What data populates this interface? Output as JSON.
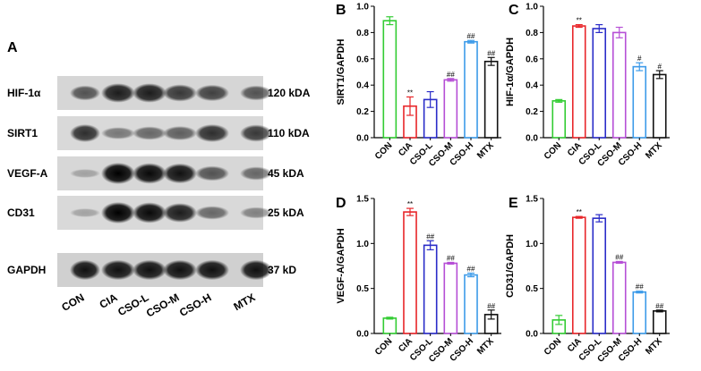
{
  "panel_a": {
    "letter": "A",
    "rows": [
      {
        "protein": "HIF-1α",
        "size": "120 kDA",
        "intensity": [
          0.55,
          0.85,
          0.85,
          0.7,
          0.65,
          0.55
        ]
      },
      {
        "protein": "SIRT1",
        "size": "110 kDA",
        "intensity": [
          0.75,
          0.35,
          0.45,
          0.5,
          0.75,
          0.7
        ]
      },
      {
        "protein": "VEGF-A",
        "size": "45 kDA",
        "intensity": [
          0.12,
          1.0,
          0.95,
          0.9,
          0.55,
          0.45
        ]
      },
      {
        "protein": "CD31",
        "size": "25 kDA",
        "intensity": [
          0.12,
          1.0,
          0.95,
          0.85,
          0.45,
          0.3
        ]
      },
      {
        "protein": "GAPDH",
        "size": "37 kD",
        "intensity": [
          0.9,
          0.9,
          0.9,
          0.9,
          0.9,
          0.9
        ]
      }
    ],
    "lanes": [
      "CON",
      "CIA",
      "CSO-L",
      "CSO-M",
      "CSO-H",
      "MTX"
    ]
  },
  "chart_data": [
    {
      "panel": "B",
      "type": "bar",
      "ylabel": "SIRT1/GAPDH",
      "categories": [
        "CON",
        "CIA",
        "CSO-L",
        "CSO-M",
        "CSO-H",
        "MTX"
      ],
      "values": [
        0.89,
        0.24,
        0.29,
        0.44,
        0.73,
        0.58
      ],
      "errors": [
        0.03,
        0.07,
        0.06,
        0.01,
        0.01,
        0.03
      ],
      "annotations": [
        "",
        "**",
        "",
        "##",
        "##",
        "##"
      ],
      "ylim": [
        0,
        1.0
      ],
      "yticks": [
        "0.0",
        "0.2",
        "0.4",
        "0.6",
        "0.8",
        "1.0"
      ]
    },
    {
      "panel": "C",
      "type": "bar",
      "ylabel": "HIF-1α/GAPDH",
      "categories": [
        "CON",
        "CIA",
        "CSO-L",
        "CSO-M",
        "CSO-H",
        "MTX"
      ],
      "values": [
        0.28,
        0.85,
        0.83,
        0.8,
        0.54,
        0.48
      ],
      "errors": [
        0.01,
        0.01,
        0.03,
        0.04,
        0.03,
        0.03
      ],
      "annotations": [
        "",
        "**",
        "",
        "",
        "#",
        "#"
      ],
      "ylim": [
        0,
        1.0
      ],
      "yticks": [
        "0.0",
        "0.2",
        "0.4",
        "0.6",
        "0.8",
        "1.0"
      ]
    },
    {
      "panel": "D",
      "type": "bar",
      "ylabel": "VEGF-A/GAPDH",
      "categories": [
        "CON",
        "CIA",
        "CSO-L",
        "CSO-M",
        "CSO-H",
        "MTX"
      ],
      "values": [
        0.17,
        1.35,
        0.98,
        0.78,
        0.65,
        0.21
      ],
      "errors": [
        0.01,
        0.04,
        0.05,
        0.01,
        0.02,
        0.05
      ],
      "annotations": [
        "",
        "**",
        "##",
        "##",
        "##",
        "##"
      ],
      "ylim": [
        0,
        1.5
      ],
      "yticks": [
        "0.0",
        "0.5",
        "1.0",
        "1.5"
      ]
    },
    {
      "panel": "E",
      "type": "bar",
      "ylabel": "CD31/GAPDH",
      "categories": [
        "CON",
        "CIA",
        "CSO-L",
        "CSO-M",
        "CSO-H",
        "MTX"
      ],
      "values": [
        0.15,
        1.29,
        1.28,
        0.79,
        0.46,
        0.25
      ],
      "errors": [
        0.05,
        0.01,
        0.04,
        0.01,
        0.01,
        0.01
      ],
      "annotations": [
        "",
        "**",
        "",
        "##",
        "##",
        "##"
      ],
      "ylim": [
        0,
        1.5
      ],
      "yticks": [
        "0.0",
        "0.5",
        "1.0",
        "1.5"
      ]
    }
  ],
  "series_colors": [
    "#33cc33",
    "#e8262a",
    "#2a2cc8",
    "#b64fd6",
    "#3d9be9",
    "#111111"
  ]
}
